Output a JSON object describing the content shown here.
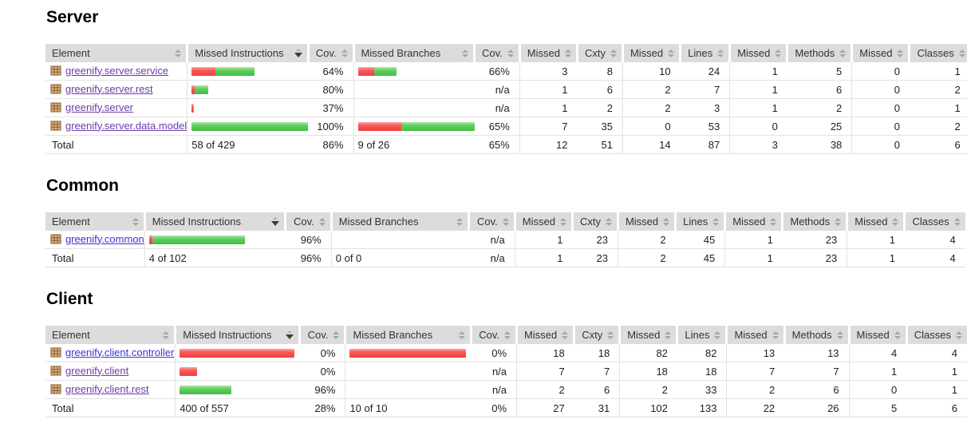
{
  "header": {
    "columns": [
      {
        "label": "Element",
        "key": "element",
        "sort": "both",
        "align": "spread"
      },
      {
        "label": "Missed Instructions",
        "key": "missed-instructions",
        "sort": "desc",
        "align": "spread"
      },
      {
        "label": "Cov.",
        "key": "cov-instructions",
        "sort": "both",
        "align": "right"
      },
      {
        "label": "Missed Branches",
        "key": "missed-branches",
        "sort": "both",
        "align": "spread"
      },
      {
        "label": "Cov.",
        "key": "cov-branches",
        "sort": "both",
        "align": "right"
      },
      {
        "label": "Missed",
        "key": "missed-cxty",
        "sort": "both",
        "align": "right"
      },
      {
        "label": "Cxty",
        "key": "cxty",
        "sort": "both",
        "align": "right"
      },
      {
        "label": "Missed",
        "key": "missed-lines",
        "sort": "both",
        "align": "right"
      },
      {
        "label": "Lines",
        "key": "lines",
        "sort": "both",
        "align": "right"
      },
      {
        "label": "Missed",
        "key": "missed-methods",
        "sort": "both",
        "align": "right"
      },
      {
        "label": "Methods",
        "key": "methods",
        "sort": "both",
        "align": "right"
      },
      {
        "label": "Missed",
        "key": "missed-classes",
        "sort": "both",
        "align": "right"
      },
      {
        "label": "Classes",
        "key": "classes",
        "sort": "both",
        "align": "right"
      }
    ]
  },
  "colors": {
    "header_bg": "#dcdcdc",
    "row_border": "#e2e2e2",
    "bar_red": "#f23d3d",
    "bar_green": "#3fbf3f",
    "link_purple": "#6a3cab",
    "link_blue": "#3a35d1"
  },
  "sections": [
    {
      "title": "Server",
      "el_col_width": 160,
      "ibar_col_width": 172,
      "rows": [
        {
          "name": "greenify.server.service",
          "link_color": "#6a3cab",
          "instr_bar": {
            "red": 30,
            "green": 49
          },
          "instr_cov": "64%",
          "branch_bar": {
            "red": 20,
            "green": 28
          },
          "branch_cov": "66%",
          "cells": [
            "3",
            "8",
            "10",
            "24",
            "1",
            "5",
            "0",
            "1"
          ]
        },
        {
          "name": "greenify.server.rest",
          "link_color": "#6a3cab",
          "instr_bar": {
            "red": 4,
            "green": 17
          },
          "instr_cov": "80%",
          "branch_bar": null,
          "branch_cov": "n/a",
          "cells": [
            "1",
            "6",
            "2",
            "7",
            "1",
            "6",
            "0",
            "2"
          ]
        },
        {
          "name": "greenify.server",
          "link_color": "#6a3cab",
          "instr_bar": {
            "red": 2,
            "green": 1
          },
          "instr_cov": "37%",
          "branch_bar": null,
          "branch_cov": "n/a",
          "cells": [
            "1",
            "2",
            "2",
            "3",
            "1",
            "2",
            "0",
            "1"
          ]
        },
        {
          "name": "greenify.server.data.model",
          "link_color": "#6a3cab",
          "instr_bar": {
            "red": 0,
            "green": 146
          },
          "instr_cov": "100%",
          "branch_bar": {
            "red": 54,
            "green": 92
          },
          "branch_cov": "65%",
          "cells": [
            "7",
            "35",
            "0",
            "53",
            "0",
            "25",
            "0",
            "2"
          ]
        }
      ],
      "total": {
        "label": "Total",
        "instr_text": "58 of 429",
        "instr_cov": "86%",
        "branch_text": "9 of 26",
        "branch_cov": "65%",
        "cells": [
          "12",
          "51",
          "14",
          "87",
          "3",
          "38",
          "0",
          "6"
        ]
      }
    },
    {
      "title": "Common",
      "el_col_width": 112,
      "ibar_col_width": 176,
      "rows": [
        {
          "name": "greenify.common",
          "link_color": "#3a35d1",
          "instr_bar": {
            "red": 4,
            "green": 116
          },
          "instr_cov": "96%",
          "branch_bar": null,
          "branch_cov": "n/a",
          "cells": [
            "1",
            "23",
            "2",
            "45",
            "1",
            "23",
            "1",
            "4"
          ]
        }
      ],
      "total": {
        "label": "Total",
        "instr_text": "4 of 102",
        "instr_cov": "96%",
        "branch_text": "0 of 0",
        "branch_cov": "n/a",
        "cells": [
          "1",
          "23",
          "2",
          "45",
          "1",
          "23",
          "1",
          "4"
        ]
      }
    },
    {
      "title": "Client",
      "el_col_width": 165,
      "ibar_col_width": 172,
      "rows": [
        {
          "name": "greenify.client.controller",
          "link_color": "#3a35d1",
          "instr_bar": {
            "red": 144,
            "green": 0
          },
          "instr_cov": "0%",
          "branch_bar": {
            "red": 146,
            "green": 0
          },
          "branch_cov": "0%",
          "cells": [
            "18",
            "18",
            "82",
            "82",
            "13",
            "13",
            "4",
            "4"
          ]
        },
        {
          "name": "greenify.client",
          "link_color": "#6a3cab",
          "instr_bar": {
            "red": 22,
            "green": 0
          },
          "instr_cov": "0%",
          "branch_bar": null,
          "branch_cov": "n/a",
          "cells": [
            "7",
            "7",
            "18",
            "18",
            "7",
            "7",
            "1",
            "1"
          ]
        },
        {
          "name": "greenify.client.rest",
          "link_color": "#6a3cab",
          "instr_bar": {
            "red": 0,
            "green": 65
          },
          "instr_cov": "96%",
          "branch_bar": null,
          "branch_cov": "n/a",
          "cells": [
            "2",
            "6",
            "2",
            "33",
            "2",
            "6",
            "0",
            "1"
          ]
        }
      ],
      "total": {
        "label": "Total",
        "instr_text": "400 of 557",
        "instr_cov": "28%",
        "branch_text": "10 of 10",
        "branch_cov": "0%",
        "cells": [
          "27",
          "31",
          "102",
          "133",
          "22",
          "26",
          "5",
          "6"
        ]
      }
    }
  ]
}
